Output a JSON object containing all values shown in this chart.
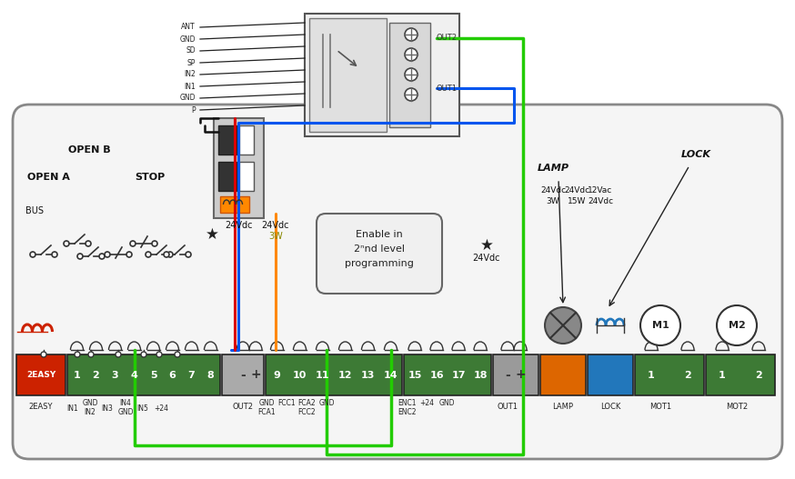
{
  "bg_color": "#ffffff",
  "wire_colors": {
    "green": "#22cc00",
    "blue": "#0055ee",
    "red": "#dd0000",
    "orange": "#ff8800",
    "black": "#111111"
  },
  "module_wire_labels": [
    "ANT",
    "GND",
    "SD",
    "SP",
    "IN2",
    "IN1",
    "GND",
    "P"
  ],
  "panel_labels": {
    "open_b": "OPEN B",
    "open_a": "OPEN A",
    "stop": "STOP",
    "bus": "BUS",
    "enable_line1": "Enable in",
    "enable_line2": "2ⁿnd level",
    "enable_line3": "programming",
    "lamp": "LAMP",
    "lock": "LOCK",
    "out2_label": "OUT2",
    "out1_label": "OUT1",
    "lamp_label": "LAMP",
    "lock_label": "LOCK",
    "mot1_label": "MOT1",
    "mot2_label": "MOT2",
    "easy_label": "2EASY",
    "24vdc": "24Vdc",
    "3w": "3W",
    "star": "★",
    "24vdc2": "24Vdc",
    "24vdc_lamp": "24Vdc",
    "3w_lamp": "3W",
    "24vdc_15w": "24Vdc",
    "15w": "15W",
    "12vac": "12Vac",
    "24vdc_lock": "24Vdc",
    "out2_minus": "-",
    "out2_plus": "+",
    "out1_minus": "-",
    "out1_plus": "+"
  },
  "term_sublabels": [
    [
      80,
      450,
      "IN1"
    ],
    [
      99,
      443,
      "GND"
    ],
    [
      99,
      453,
      "IN2"
    ],
    [
      118,
      450,
      "IN3"
    ],
    [
      138,
      443,
      "IN4"
    ],
    [
      138,
      453,
      "GND"
    ],
    [
      157,
      450,
      "IN5"
    ],
    [
      177,
      450,
      "+24"
    ],
    [
      293,
      443,
      "GND"
    ],
    [
      293,
      453,
      "FCA1"
    ],
    [
      315,
      443,
      "FCC1"
    ],
    [
      337,
      443,
      "FCA2"
    ],
    [
      337,
      453,
      "FCC2"
    ],
    [
      359,
      443,
      "GND"
    ],
    [
      447,
      443,
      "ENC1"
    ],
    [
      447,
      453,
      "ENC2"
    ],
    [
      469,
      443,
      "+24"
    ],
    [
      491,
      443,
      "GND"
    ]
  ],
  "m1_label": "M1",
  "m2_label": "M2"
}
